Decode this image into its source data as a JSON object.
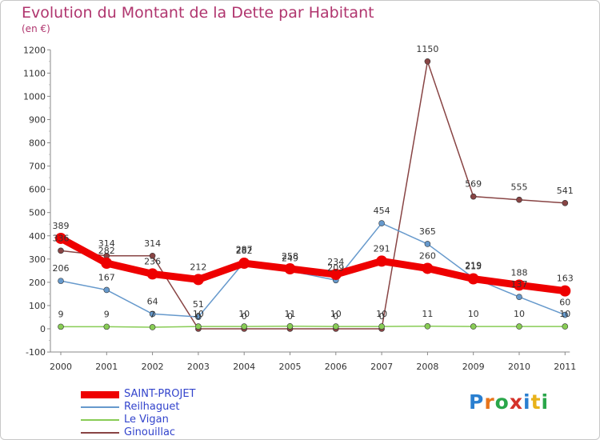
{
  "title": "Evolution du Montant de la Dette par Habitant",
  "subtitle": "(en €)",
  "logo": {
    "letters": [
      "P",
      "r",
      "o",
      "x",
      "i",
      "t",
      "i"
    ],
    "colors": [
      "#2a7fd0",
      "#e8741a",
      "#2aa64a",
      "#d4322a",
      "#2a7fd0",
      "#e8b21a",
      "#2aa64a"
    ]
  },
  "chart_data": {
    "type": "line",
    "title": "Evolution du Montant de la Dette par Habitant",
    "subtitle": "(en €)",
    "ylim": [
      -100,
      1200
    ],
    "yticks": [
      -100,
      0,
      100,
      200,
      300,
      400,
      500,
      600,
      700,
      800,
      900,
      1000,
      1100,
      1200
    ],
    "x": [
      "2000",
      "2001",
      "2002",
      "2003",
      "2004",
      "2005",
      "2006",
      "2007",
      "2008",
      "2009",
      "2010",
      "2011"
    ],
    "grid": false,
    "legend_position": "bottom-left",
    "series": [
      {
        "name": "SAINT-PROJET",
        "color": "#ee0000",
        "values": [
          389,
          282,
          236,
          212,
          282,
          258,
          234,
          291,
          260,
          215,
          188,
          163
        ],
        "labels": [
          "389",
          "282",
          "236",
          "212",
          "282",
          "258",
          "234",
          "291",
          "260",
          "215",
          "188",
          "163"
        ]
      },
      {
        "name": "Reilhaguet",
        "color": "#6699cc",
        "values": [
          206,
          167,
          64,
          51,
          287,
          249,
          209,
          454,
          365,
          219,
          137,
          60
        ],
        "labels": [
          "206",
          "167",
          "64",
          "51",
          "287",
          "249",
          "209",
          "454",
          "365",
          "219",
          "137",
          "60"
        ]
      },
      {
        "name": "Le Vigan",
        "color": "#88cc55",
        "values": [
          9,
          9,
          7,
          10,
          10,
          11,
          10,
          10,
          11,
          10,
          10,
          10
        ],
        "labels": [
          "9",
          "9",
          "7",
          "10",
          "10",
          "11",
          "10",
          "10",
          "11",
          "10",
          "10",
          "10"
        ]
      },
      {
        "name": "Ginouillac",
        "color": "#884444",
        "values": [
          336,
          314,
          314,
          0,
          0,
          0,
          0,
          0,
          1150,
          569,
          555,
          541
        ],
        "labels": [
          "336",
          "314",
          "314",
          "0",
          "0",
          "0",
          "0",
          "0",
          "1150",
          "569",
          "555",
          "541"
        ]
      }
    ]
  }
}
